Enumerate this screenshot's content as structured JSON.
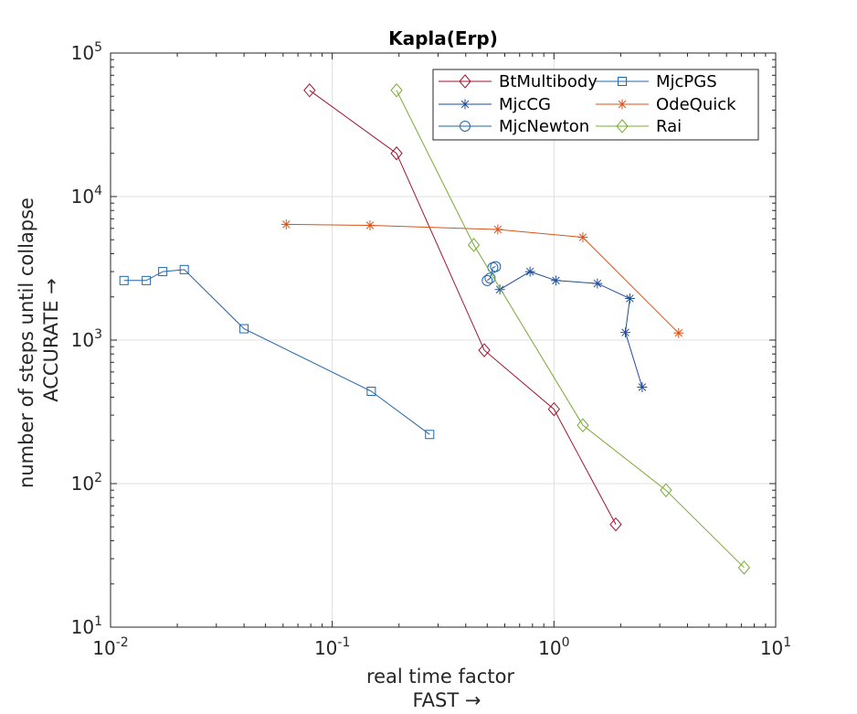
{
  "chart_data": {
    "type": "line",
    "title": "Kapla(Erp)",
    "xlabel": [
      "real time factor",
      "FAST →"
    ],
    "ylabel": [
      "number of steps until collapse",
      "ACCURATE →"
    ],
    "xscale": "log",
    "yscale": "log",
    "xlim": [
      0.01,
      10
    ],
    "ylim": [
      10,
      100000
    ],
    "x_ticks": [
      {
        "base": "10",
        "exp": "-2"
      },
      {
        "base": "10",
        "exp": "-1"
      },
      {
        "base": "10",
        "exp": "0"
      },
      {
        "base": "10",
        "exp": "1"
      }
    ],
    "y_ticks": [
      {
        "base": "10",
        "exp": "1"
      },
      {
        "base": "10",
        "exp": "2"
      },
      {
        "base": "10",
        "exp": "3"
      },
      {
        "base": "10",
        "exp": "4"
      },
      {
        "base": "10",
        "exp": "5"
      }
    ],
    "grid": true,
    "legend_position": "top-right",
    "series": [
      {
        "name": "BtMultibody",
        "color": "#a2142f",
        "marker": "diamond",
        "x": [
          0.079,
          0.195,
          0.485,
          1.0,
          1.9
        ],
        "y": [
          55000,
          20000,
          850,
          330,
          52
        ]
      },
      {
        "name": "MjcPGS",
        "color": "#2166ac",
        "marker": "square",
        "x": [
          0.0115,
          0.0145,
          0.0172,
          0.0215,
          0.04,
          0.15,
          0.275
        ],
        "y": [
          2600,
          2600,
          3000,
          3100,
          1200,
          440,
          220
        ]
      },
      {
        "name": "MjcCG",
        "color": "#1f4e99",
        "marker": "asterisk",
        "x": [
          0.57,
          0.78,
          1.02,
          1.57,
          2.2,
          2.1,
          2.5
        ],
        "y": [
          2250,
          3000,
          2600,
          2480,
          1950,
          1130,
          470
        ]
      },
      {
        "name": "OdeQuick",
        "color": "#d95319",
        "marker": "asterisk",
        "x": [
          0.062,
          0.148,
          0.558,
          1.35,
          3.65
        ],
        "y": [
          6400,
          6300,
          5900,
          5200,
          1120
        ]
      },
      {
        "name": "MjcNewton",
        "color": "#2166ac",
        "marker": "circle",
        "x": [
          0.5,
          0.515,
          0.53,
          0.545
        ],
        "y": [
          2600,
          2700,
          3200,
          3250
        ]
      },
      {
        "name": "Rai",
        "color": "#77ac30",
        "marker": "diamond",
        "x": [
          0.195,
          0.435,
          1.35,
          3.2,
          7.2
        ],
        "y": [
          55000,
          4600,
          255,
          90,
          26
        ]
      }
    ]
  }
}
